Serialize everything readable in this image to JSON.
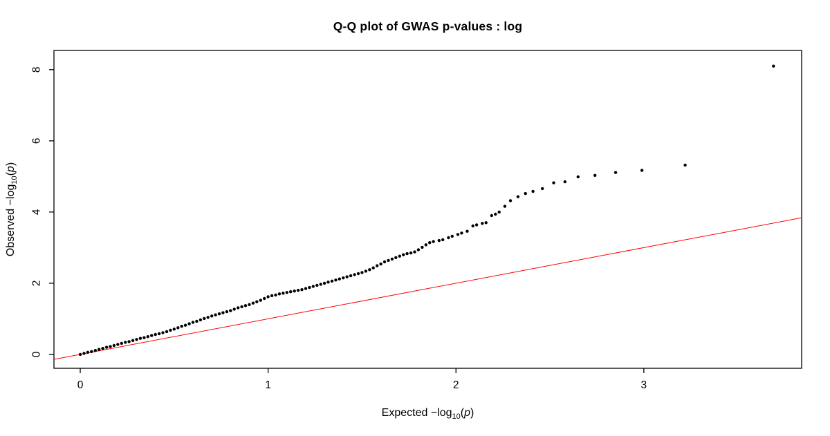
{
  "title": "Q-Q plot of GWAS p-values : log",
  "labels": {
    "x": {
      "text1": "Expected  −log",
      "sub": "10",
      "text2": "(",
      "var": "p",
      "text3": ")"
    },
    "y": {
      "text1": "Observed  −log",
      "sub": "10",
      "text2": "(",
      "var": "p",
      "text3": ")"
    }
  },
  "colors": {
    "points": "#000000",
    "reference_line": "#ff0000",
    "axis": "#000000",
    "background": "#ffffff"
  },
  "chart_data": {
    "type": "scatter",
    "title": "Q-Q plot of GWAS p-values : log",
    "xlabel": "Expected −log10(p)",
    "ylabel": "Observed −log10(p)",
    "xlim": [
      -0.14,
      3.84
    ],
    "ylim": [
      -0.39,
      8.54
    ],
    "x_ticks": [
      0,
      1,
      2,
      3
    ],
    "y_ticks": [
      0,
      2,
      4,
      6,
      8
    ],
    "grid": false,
    "legend": "none",
    "reference_line": {
      "intercept": 0,
      "slope": 1,
      "color": "#ff0000"
    },
    "point_radius_px": 2.2,
    "points": [
      [
        0.0,
        0.0
      ],
      [
        0.02,
        0.03
      ],
      [
        0.04,
        0.06
      ],
      [
        0.06,
        0.08
      ],
      [
        0.08,
        0.11
      ],
      [
        0.1,
        0.14
      ],
      [
        0.12,
        0.17
      ],
      [
        0.14,
        0.2
      ],
      [
        0.16,
        0.22
      ],
      [
        0.18,
        0.25
      ],
      [
        0.2,
        0.28
      ],
      [
        0.22,
        0.31
      ],
      [
        0.24,
        0.34
      ],
      [
        0.26,
        0.36
      ],
      [
        0.28,
        0.39
      ],
      [
        0.3,
        0.42
      ],
      [
        0.32,
        0.45
      ],
      [
        0.34,
        0.47
      ],
      [
        0.36,
        0.5
      ],
      [
        0.38,
        0.53
      ],
      [
        0.4,
        0.56
      ],
      [
        0.42,
        0.58
      ],
      [
        0.44,
        0.61
      ],
      [
        0.46,
        0.64
      ],
      [
        0.48,
        0.68
      ],
      [
        0.5,
        0.71
      ],
      [
        0.52,
        0.75
      ],
      [
        0.54,
        0.79
      ],
      [
        0.56,
        0.82
      ],
      [
        0.58,
        0.86
      ],
      [
        0.6,
        0.9
      ],
      [
        0.62,
        0.93
      ],
      [
        0.64,
        0.97
      ],
      [
        0.66,
        1.01
      ],
      [
        0.68,
        1.04
      ],
      [
        0.7,
        1.08
      ],
      [
        0.72,
        1.11
      ],
      [
        0.74,
        1.14
      ],
      [
        0.76,
        1.17
      ],
      [
        0.78,
        1.2
      ],
      [
        0.8,
        1.23
      ],
      [
        0.82,
        1.27
      ],
      [
        0.84,
        1.31
      ],
      [
        0.86,
        1.34
      ],
      [
        0.88,
        1.37
      ],
      [
        0.9,
        1.4
      ],
      [
        0.92,
        1.44
      ],
      [
        0.94,
        1.48
      ],
      [
        0.96,
        1.52
      ],
      [
        0.98,
        1.57
      ],
      [
        1.0,
        1.62
      ],
      [
        1.02,
        1.65
      ],
      [
        1.04,
        1.67
      ],
      [
        1.06,
        1.7
      ],
      [
        1.08,
        1.72
      ],
      [
        1.1,
        1.74
      ],
      [
        1.12,
        1.76
      ],
      [
        1.14,
        1.78
      ],
      [
        1.16,
        1.8
      ],
      [
        1.18,
        1.82
      ],
      [
        1.2,
        1.85
      ],
      [
        1.22,
        1.88
      ],
      [
        1.24,
        1.91
      ],
      [
        1.26,
        1.94
      ],
      [
        1.28,
        1.97
      ],
      [
        1.3,
        2.0
      ],
      [
        1.32,
        2.03
      ],
      [
        1.34,
        2.06
      ],
      [
        1.36,
        2.09
      ],
      [
        1.38,
        2.12
      ],
      [
        1.4,
        2.15
      ],
      [
        1.42,
        2.18
      ],
      [
        1.44,
        2.21
      ],
      [
        1.46,
        2.24
      ],
      [
        1.48,
        2.27
      ],
      [
        1.5,
        2.3
      ],
      [
        1.52,
        2.34
      ],
      [
        1.54,
        2.38
      ],
      [
        1.56,
        2.43
      ],
      [
        1.58,
        2.49
      ],
      [
        1.6,
        2.54
      ],
      [
        1.62,
        2.6
      ],
      [
        1.64,
        2.64
      ],
      [
        1.66,
        2.68
      ],
      [
        1.68,
        2.72
      ],
      [
        1.7,
        2.76
      ],
      [
        1.72,
        2.8
      ],
      [
        1.74,
        2.83
      ],
      [
        1.76,
        2.85
      ],
      [
        1.78,
        2.88
      ],
      [
        1.8,
        2.94
      ],
      [
        1.82,
        3.01
      ],
      [
        1.84,
        3.08
      ],
      [
        1.86,
        3.14
      ],
      [
        1.88,
        3.17
      ],
      [
        1.91,
        3.2
      ],
      [
        1.93,
        3.22
      ],
      [
        1.96,
        3.28
      ],
      [
        1.98,
        3.32
      ],
      [
        2.01,
        3.37
      ],
      [
        2.03,
        3.41
      ],
      [
        2.06,
        3.46
      ],
      [
        2.09,
        3.61
      ],
      [
        2.11,
        3.64
      ],
      [
        2.14,
        3.68
      ],
      [
        2.16,
        3.7
      ],
      [
        2.19,
        3.9
      ],
      [
        2.21,
        3.94
      ],
      [
        2.23,
        4.0
      ],
      [
        2.26,
        4.16
      ],
      [
        2.29,
        4.32
      ],
      [
        2.33,
        4.43
      ],
      [
        2.37,
        4.52
      ],
      [
        2.41,
        4.58
      ],
      [
        2.46,
        4.66
      ],
      [
        2.52,
        4.82
      ],
      [
        2.58,
        4.85
      ],
      [
        2.65,
        4.99
      ],
      [
        2.74,
        5.03
      ],
      [
        2.85,
        5.11
      ],
      [
        2.99,
        5.17
      ],
      [
        3.22,
        5.32
      ],
      [
        3.69,
        8.1
      ]
    ]
  }
}
